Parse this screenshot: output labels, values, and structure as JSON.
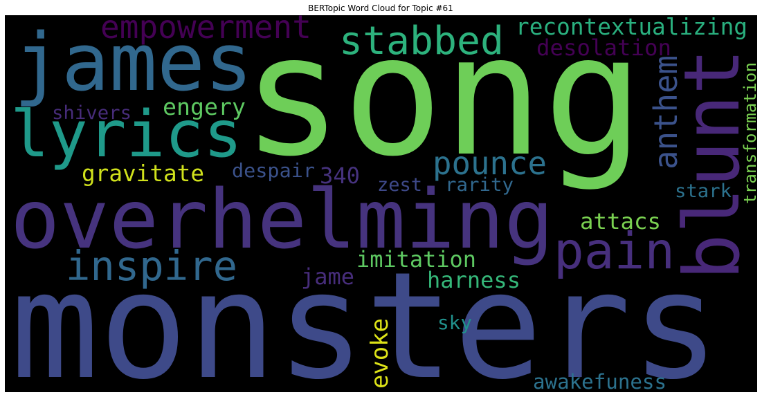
{
  "chart_data": {
    "type": "wordcloud",
    "title": "BERTopic Word Cloud for Topic #61",
    "background": "#000000",
    "words": [
      {
        "text": "song",
        "color": "#6ece58"
      },
      {
        "text": "monsters",
        "color": "#3e4a89"
      },
      {
        "text": "overhelming",
        "color": "#46337e"
      },
      {
        "text": "james",
        "color": "#31688e"
      },
      {
        "text": "lyrics",
        "color": "#1f9a8a"
      },
      {
        "text": "blunt",
        "color": "#482878"
      },
      {
        "text": "empowerment",
        "color": "#440154"
      },
      {
        "text": "stabbed",
        "color": "#2db27d"
      },
      {
        "text": "recontextualizing",
        "color": "#2ab07f"
      },
      {
        "text": "desolation",
        "color": "#440154"
      },
      {
        "text": "anthem",
        "color": "#3b528b"
      },
      {
        "text": "transformation",
        "color": "#7ad151"
      },
      {
        "text": "shivers",
        "color": "#472c7a"
      },
      {
        "text": "engery",
        "color": "#5ec962"
      },
      {
        "text": "gravitate",
        "color": "#d0e11c"
      },
      {
        "text": "despair",
        "color": "#3b528b"
      },
      {
        "text": "340",
        "color": "#46327e"
      },
      {
        "text": "pounce",
        "color": "#2c728e"
      },
      {
        "text": "zest",
        "color": "#3e4989"
      },
      {
        "text": "rarity",
        "color": "#31688e"
      },
      {
        "text": "stark",
        "color": "#2c728e"
      },
      {
        "text": "attacs",
        "color": "#7ad151"
      },
      {
        "text": "pain",
        "color": "#472f7d"
      },
      {
        "text": "inspire",
        "color": "#31688e"
      },
      {
        "text": "imitation",
        "color": "#5ec962"
      },
      {
        "text": "jame",
        "color": "#472d7b"
      },
      {
        "text": "harness",
        "color": "#35b779"
      },
      {
        "text": "evoke",
        "color": "#dde318"
      },
      {
        "text": "sky",
        "color": "#21918c"
      },
      {
        "text": "awakefuness",
        "color": "#2c728e"
      }
    ]
  }
}
